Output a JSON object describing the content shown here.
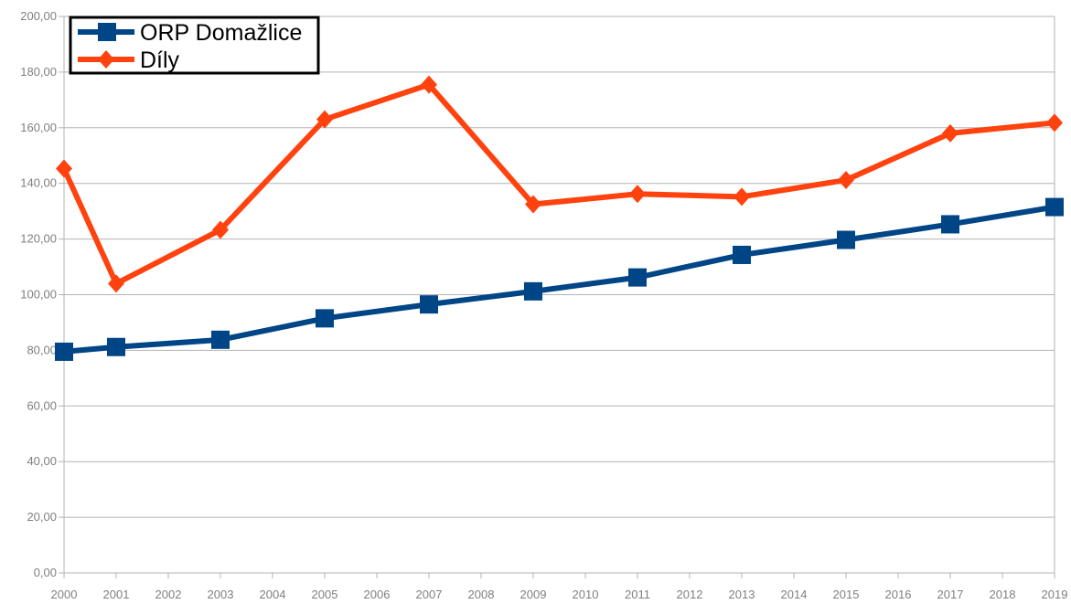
{
  "chart_data": {
    "type": "line",
    "title": "",
    "xlabel": "",
    "ylabel": "",
    "x": [
      "2000",
      "2001",
      "2002",
      "2003",
      "2004",
      "2005",
      "2006",
      "2007",
      "2008",
      "2009",
      "2010",
      "2011",
      "2012",
      "2013",
      "2014",
      "2015",
      "2016",
      "2017",
      "2018",
      "2019"
    ],
    "ylim": [
      0,
      200
    ],
    "yticks": [
      "0,00",
      "20,00",
      "40,00",
      "60,00",
      "80,00",
      "100,00",
      "120,00",
      "140,00",
      "160,00",
      "180,00",
      "200,00"
    ],
    "grid": true,
    "legend_position": "top-left",
    "series": [
      {
        "name": "ORP Domažlice",
        "color": "#004586",
        "marker": "square",
        "points": [
          {
            "x": "2000",
            "y": 79.5
          },
          {
            "x": "2001",
            "y": 81.2
          },
          {
            "x": "2003",
            "y": 83.8
          },
          {
            "x": "2005",
            "y": 91.5
          },
          {
            "x": "2007",
            "y": 96.5
          },
          {
            "x": "2009",
            "y": 101.2
          },
          {
            "x": "2011",
            "y": 106.2
          },
          {
            "x": "2013",
            "y": 114.3
          },
          {
            "x": "2015",
            "y": 119.7
          },
          {
            "x": "2017",
            "y": 125.3
          },
          {
            "x": "2019",
            "y": 131.5
          }
        ]
      },
      {
        "name": "Díly",
        "color": "#ff420e",
        "marker": "diamond",
        "points": [
          {
            "x": "2000",
            "y": 145.3
          },
          {
            "x": "2001",
            "y": 104.0
          },
          {
            "x": "2003",
            "y": 123.3
          },
          {
            "x": "2005",
            "y": 163.0
          },
          {
            "x": "2007",
            "y": 175.5
          },
          {
            "x": "2009",
            "y": 132.5
          },
          {
            "x": "2011",
            "y": 136.2
          },
          {
            "x": "2013",
            "y": 135.2
          },
          {
            "x": "2015",
            "y": 141.2
          },
          {
            "x": "2017",
            "y": 158.0
          },
          {
            "x": "2019",
            "y": 161.8
          }
        ]
      }
    ]
  }
}
